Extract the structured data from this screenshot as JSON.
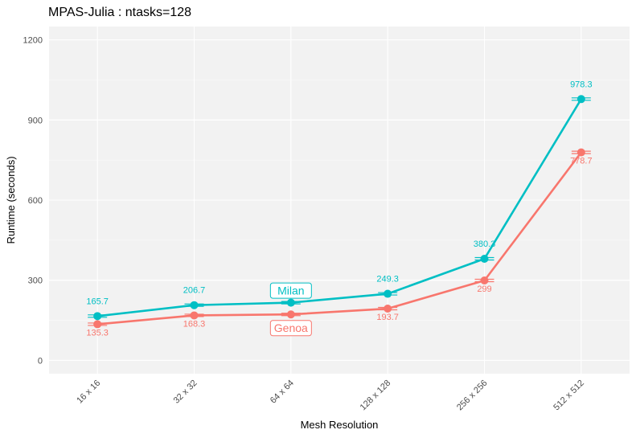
{
  "chart_data": {
    "type": "line",
    "title": "MPAS-Julia : ntasks=128",
    "xlabel": "Mesh Resolution",
    "ylabel": "Runtime (seconds)",
    "categories": [
      "16 x 16",
      "32 x 32",
      "64 x 64",
      "128 x 128",
      "256 x 256",
      "512 x 512"
    ],
    "ylim": [
      -50,
      1250
    ],
    "yticks": [
      0,
      300,
      600,
      900,
      1200
    ],
    "grid": true,
    "series": [
      {
        "name": "Milan",
        "color": "#00BFC4",
        "values": [
          165.7,
          206.7,
          216,
          249.3,
          380.3,
          978.3
        ],
        "labels": [
          "165.7",
          "206.7",
          "",
          "249.3",
          "380.3",
          "978.3"
        ],
        "label_position": "above"
      },
      {
        "name": "Genoa",
        "color": "#F8766D",
        "values": [
          135.3,
          168.3,
          172,
          193.7,
          299,
          778.7
        ],
        "labels": [
          "135.3",
          "168.3",
          "",
          "193.7",
          "299",
          "778.7"
        ],
        "label_position": "below"
      }
    ],
    "series_tags": [
      {
        "series": 0,
        "category": 2,
        "text": "Milan"
      },
      {
        "series": 1,
        "category": 2,
        "text": "Genoa"
      }
    ]
  }
}
